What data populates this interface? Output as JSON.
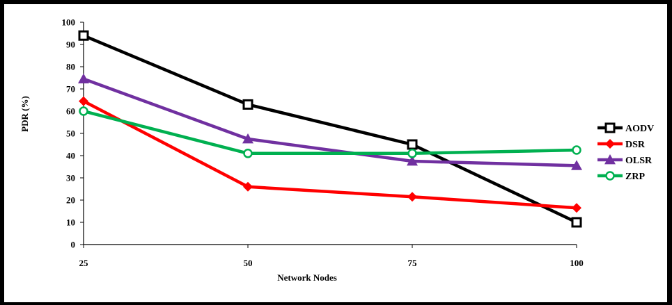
{
  "chart_data": {
    "type": "line",
    "categories": [
      "25",
      "50",
      "75",
      "100"
    ],
    "xlabel": "Network Nodes",
    "ylabel": "PDR (%)",
    "ylim": [
      0,
      100
    ],
    "yticks": [
      0,
      10,
      20,
      30,
      40,
      50,
      60,
      70,
      80,
      90,
      100
    ],
    "grid": false,
    "legend_position": "right",
    "series": [
      {
        "name": "AODV",
        "values": [
          94,
          63,
          45,
          10
        ],
        "color": "#000000",
        "marker": "square"
      },
      {
        "name": "DSR",
        "values": [
          64.5,
          26,
          21.5,
          16.5
        ],
        "color": "#ff0000",
        "marker": "diamond"
      },
      {
        "name": "OLSR",
        "values": [
          74.5,
          47.5,
          37.5,
          35.5
        ],
        "color": "#7030a0",
        "marker": "triangle"
      },
      {
        "name": "ZRP",
        "values": [
          60,
          41,
          41,
          42.5
        ],
        "color": "#00b050",
        "marker": "circle"
      }
    ]
  }
}
